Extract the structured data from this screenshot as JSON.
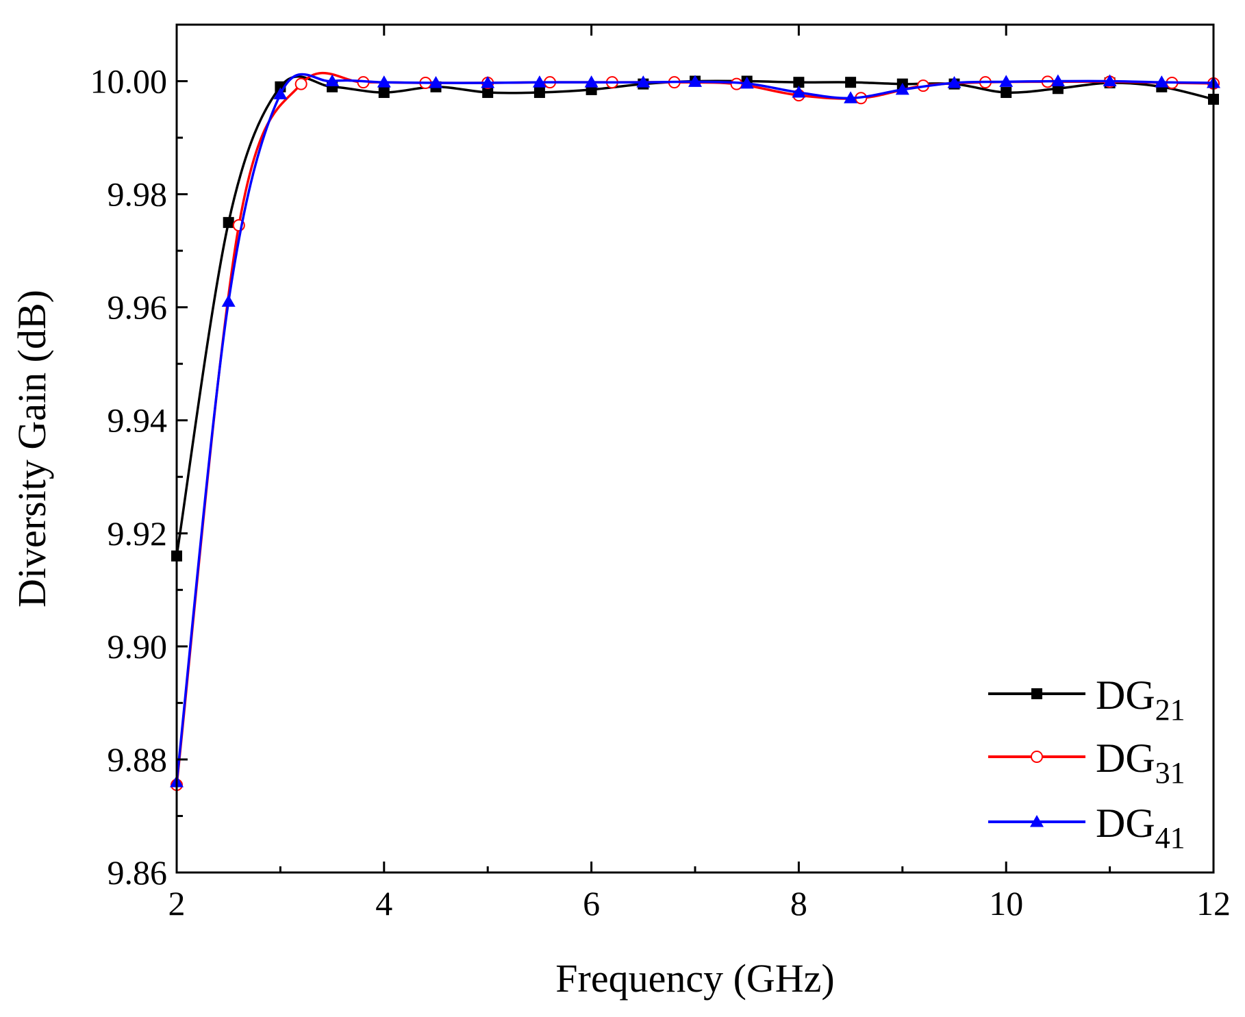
{
  "chart_data": {
    "type": "line",
    "xlabel": "Frequency (GHz)",
    "ylabel": "Diversity Gain (dB)",
    "xlim": [
      2,
      12
    ],
    "ylim": [
      9.86,
      10.01
    ],
    "x_ticks": [
      "2",
      "4",
      "6",
      "8",
      "10",
      "12"
    ],
    "y_ticks": [
      "9.86",
      "9.88",
      "9.90",
      "9.92",
      "9.94",
      "9.96",
      "9.98",
      "10.00"
    ],
    "x_tick_values": [
      2,
      4,
      6,
      8,
      10,
      12
    ],
    "y_tick_values": [
      9.86,
      9.88,
      9.9,
      9.92,
      9.94,
      9.96,
      9.98,
      10.0
    ],
    "grid": false,
    "legend_position": "bottom-right",
    "series": [
      {
        "name_base": "DG",
        "name_sub": "21",
        "color": "#000000",
        "marker": "square-filled",
        "x": [
          2.0,
          2.5,
          3.0,
          3.5,
          4.0,
          4.5,
          5.0,
          5.5,
          6.0,
          6.5,
          7.0,
          7.5,
          8.0,
          8.5,
          9.0,
          9.5,
          10.0,
          10.5,
          11.0,
          11.5,
          12.0
        ],
        "y": [
          9.916,
          9.975,
          9.999,
          9.999,
          9.998,
          9.999,
          9.998,
          9.998,
          9.9985,
          9.9995,
          10.0,
          10.0,
          9.9998,
          9.9998,
          9.9995,
          9.9995,
          9.998,
          9.9987,
          9.9997,
          9.999,
          9.9968
        ]
      },
      {
        "name_base": "DG",
        "name_sub": "31",
        "color": "#ff0000",
        "marker": "circle-open",
        "x": [
          2.0,
          2.6,
          3.2,
          3.8,
          4.4,
          5.0,
          5.6,
          6.2,
          6.8,
          7.4,
          8.0,
          8.6,
          9.2,
          9.8,
          10.4,
          11.0,
          11.6,
          12.0
        ],
        "y": [
          9.8755,
          9.9745,
          9.9995,
          9.9998,
          9.9997,
          9.9997,
          9.9998,
          9.9998,
          9.9998,
          9.9995,
          9.9975,
          9.997,
          9.9992,
          9.9998,
          9.9999,
          9.9999,
          9.9997,
          9.9996
        ]
      },
      {
        "name_base": "DG",
        "name_sub": "41",
        "color": "#0000ff",
        "marker": "triangle-filled",
        "x": [
          2.0,
          2.5,
          3.0,
          3.5,
          4.0,
          4.5,
          5.0,
          5.5,
          6.0,
          6.5,
          7.0,
          7.5,
          8.0,
          8.5,
          9.0,
          9.5,
          10.0,
          10.5,
          11.0,
          11.5,
          12.0
        ],
        "y": [
          9.876,
          9.961,
          9.9977,
          10.0,
          9.9998,
          9.9997,
          9.9997,
          9.9998,
          9.9998,
          9.9998,
          9.9999,
          9.9996,
          9.998,
          9.997,
          9.9985,
          9.9997,
          9.9999,
          10.0,
          10.0,
          9.9998,
          9.9997
        ]
      }
    ]
  }
}
